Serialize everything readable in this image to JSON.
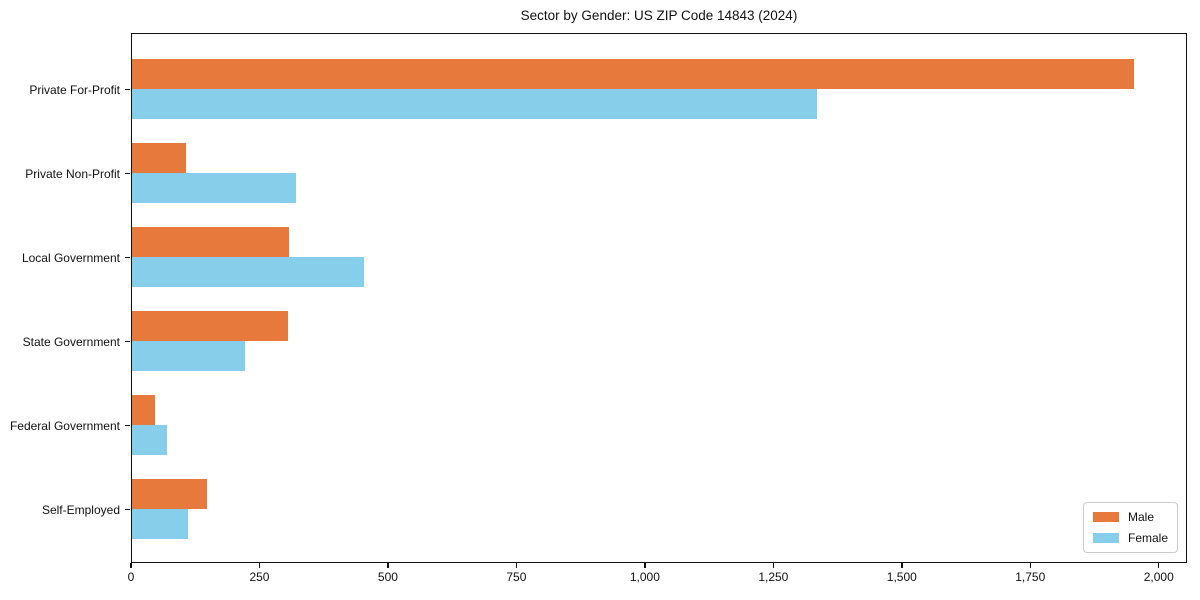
{
  "title": "Sector by Gender: US ZIP Code 14843 (2024)",
  "colors": {
    "male": "#E8793C",
    "female": "#87CEEB",
    "spine": "#111111",
    "legend_border": "#cccccc",
    "background": "#ffffff",
    "text": "#111111"
  },
  "chart_data": {
    "type": "bar",
    "orientation": "horizontal",
    "title": "Sector by Gender: US ZIP Code 14843 (2024)",
    "categories": [
      "Private For-Profit",
      "Private Non-Profit",
      "Local Government",
      "State Government",
      "Federal Government",
      "Self-Employed"
    ],
    "series": [
      {
        "name": "Male",
        "color": "#E8793C",
        "values": [
          1955,
          105,
          306,
          304,
          45,
          146
        ]
      },
      {
        "name": "Female",
        "color": "#87CEEB",
        "values": [
          1336,
          321,
          452,
          220,
          68,
          109
        ]
      }
    ],
    "xlabel": "",
    "ylabel": "",
    "xlim": [
      0,
      2055
    ],
    "xticks": [
      0,
      250,
      500,
      750,
      1000,
      1250,
      1500,
      1750,
      2000
    ],
    "xtick_labels": [
      "0",
      "250",
      "500",
      "750",
      "1,000",
      "1,250",
      "1,500",
      "1,750",
      "2,000"
    ],
    "grid": false,
    "legend_position": "lower right"
  },
  "legend": {
    "items": [
      {
        "label": "Male"
      },
      {
        "label": "Female"
      }
    ]
  }
}
